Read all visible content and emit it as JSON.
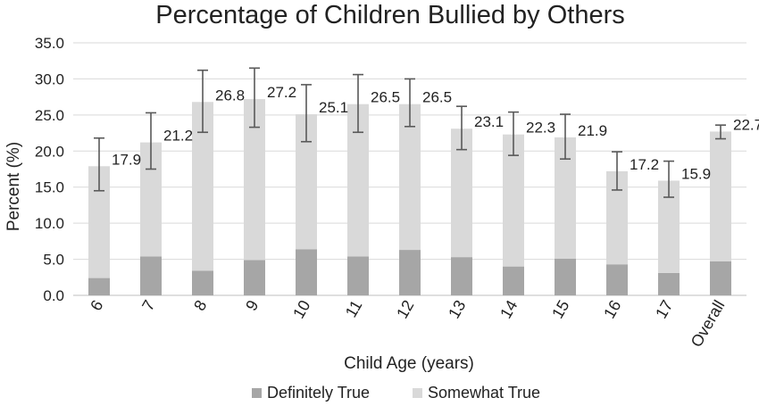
{
  "chart_data": {
    "type": "bar",
    "stacked": true,
    "title": "Percentage of Children Bullied by Others",
    "xlabel": "Child Age (years)",
    "ylabel": "Percent (%)",
    "ylim": [
      0,
      35
    ],
    "yticks": [
      "0.0",
      "5.0",
      "10.0",
      "15.0",
      "20.0",
      "25.0",
      "30.0",
      "35.0"
    ],
    "grid": true,
    "legend_position": "bottom",
    "categories": [
      "6",
      "7",
      "8",
      "9",
      "10",
      "11",
      "12",
      "13",
      "14",
      "15",
      "16",
      "17",
      "Overall"
    ],
    "series": [
      {
        "name": "Definitely True",
        "color": "#a6a6a6",
        "values": [
          2.4,
          5.4,
          3.4,
          4.9,
          6.4,
          5.4,
          6.3,
          5.3,
          4.0,
          5.1,
          4.3,
          3.1,
          4.7
        ]
      },
      {
        "name": "Somewhat True",
        "color": "#d9d9d9",
        "values": [
          15.5,
          15.8,
          23.4,
          22.3,
          18.7,
          21.1,
          20.2,
          17.8,
          18.3,
          16.8,
          12.9,
          12.8,
          18.0
        ]
      }
    ],
    "totals": [
      "17.9",
      "21.2",
      "26.8",
      "27.2",
      "25.1",
      "26.5",
      "26.5",
      "23.1",
      "22.3",
      "21.9",
      "17.2",
      "15.9",
      "22.7"
    ],
    "error_bars": [
      [
        14.5,
        21.8
      ],
      [
        17.5,
        25.3
      ],
      [
        22.6,
        31.2
      ],
      [
        23.3,
        31.5
      ],
      [
        21.3,
        29.2
      ],
      [
        22.6,
        30.6
      ],
      [
        23.4,
        30.0
      ],
      [
        20.2,
        26.2
      ],
      [
        19.4,
        25.4
      ],
      [
        18.9,
        25.1
      ],
      [
        14.6,
        19.9
      ],
      [
        13.6,
        18.6
      ],
      [
        21.7,
        23.6
      ]
    ]
  },
  "colors": {
    "gridline": "#d9d9d9",
    "axis": "#bfbfbf",
    "error_bar": "#595959"
  }
}
